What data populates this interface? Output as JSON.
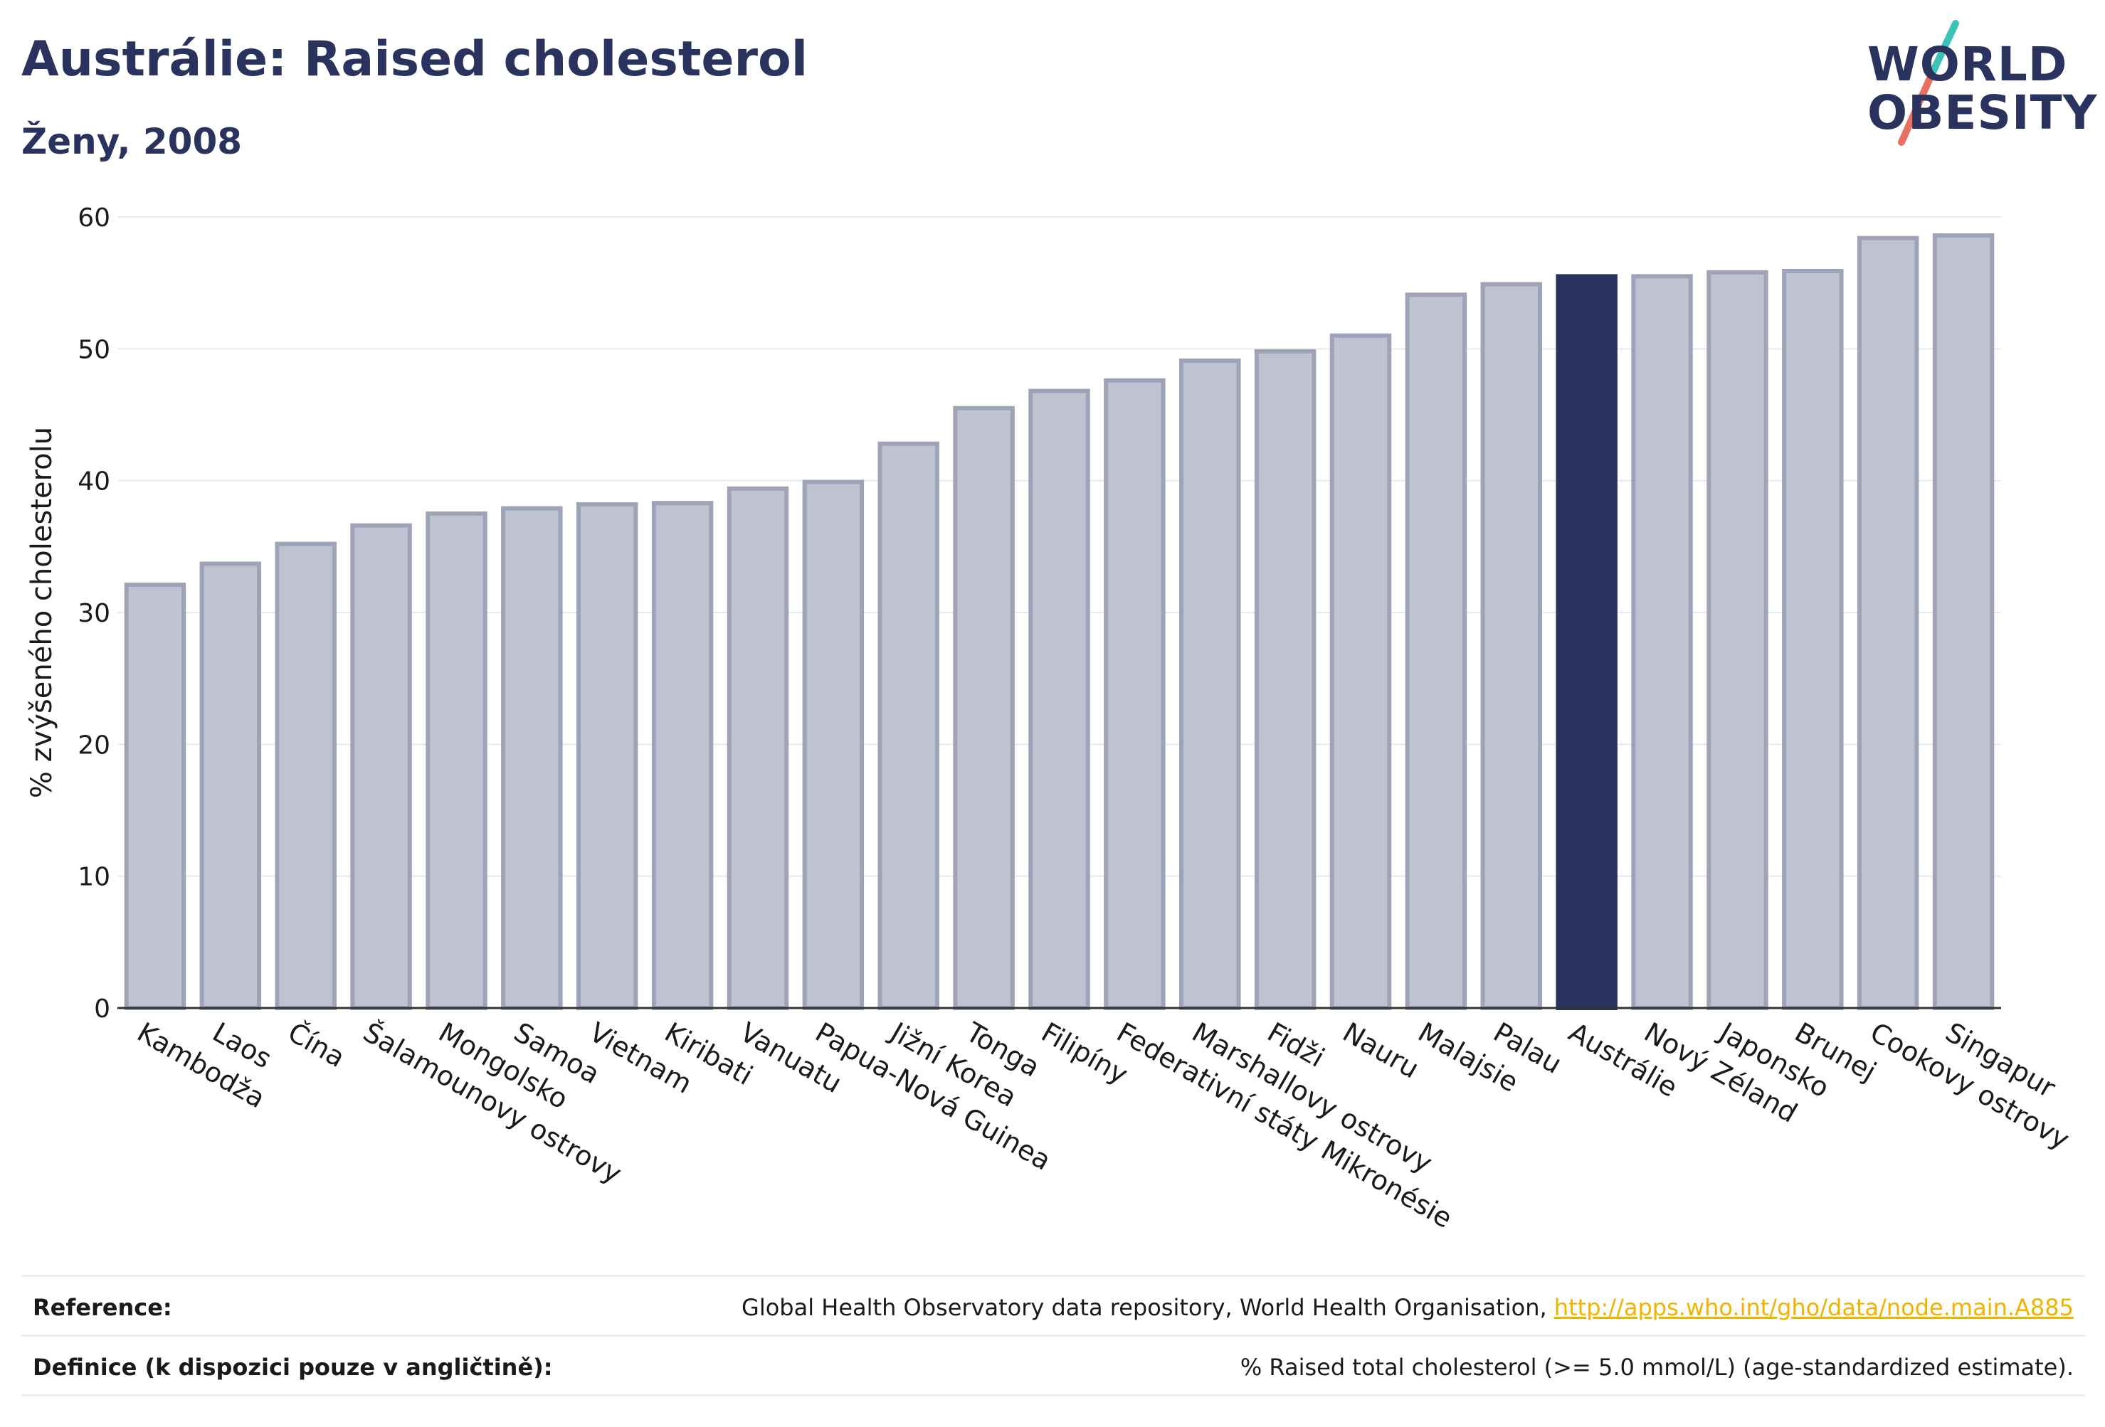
{
  "header": {
    "title": "Austrálie: Raised cholesterol",
    "subtitle": "Ženy, 2008"
  },
  "logo": {
    "line1": "WORLD",
    "line2": "OBESITY"
  },
  "colors": {
    "highlight": "#2a335e",
    "bar": "#bfc2d0",
    "bar_border": "#9ea3b8",
    "grid": "#e6e8ef",
    "axis": "#333333",
    "logo_slash_teal": "#3cc3b8",
    "logo_slash_red": "#e8705f"
  },
  "chart_data": {
    "type": "bar",
    "title": "Austrálie: Raised cholesterol",
    "subtitle": "Ženy, 2008",
    "xlabel": "",
    "ylabel": "% zvýšeného cholesterolu",
    "ylim": [
      0,
      60
    ],
    "yticks": [
      0,
      10,
      20,
      30,
      40,
      50,
      60
    ],
    "grid": true,
    "highlight": "Austrálie",
    "categories": [
      "Kambodža",
      "Laos",
      "Čína",
      "Šalamounovy ostrovy",
      "Mongolsko",
      "Samoa",
      "Vietnam",
      "Kiribati",
      "Vanuatu",
      "Papua-Nová Guinea",
      "Jižní Korea",
      "Tonga",
      "Filipíny",
      "Federativní státy Mikronésie",
      "Marshallovy ostrovy",
      "Fidži",
      "Nauru",
      "Malajsie",
      "Palau",
      "Austrálie",
      "Nový Zéland",
      "Japonsko",
      "Brunej",
      "Cookovy ostrovy",
      "Singapur"
    ],
    "values": [
      32.1,
      33.7,
      35.2,
      36.6,
      37.5,
      37.9,
      38.2,
      38.3,
      39.4,
      39.9,
      42.8,
      45.5,
      46.8,
      47.6,
      49.1,
      49.8,
      51.0,
      54.1,
      54.9,
      55.5,
      55.5,
      55.8,
      55.9,
      58.4,
      58.6
    ]
  },
  "footer": {
    "reference_label": "Reference:",
    "reference_text": "Global Health Observatory data repository, World Health Organisation, ",
    "reference_link": "http://apps.who.int/gho/data/node.main.A885",
    "definition_label": "Definice (k dispozici pouze v angličtině):",
    "definition_text": "% Raised total cholesterol (>= 5.0 mmol/L) (age-standardized estimate)."
  }
}
